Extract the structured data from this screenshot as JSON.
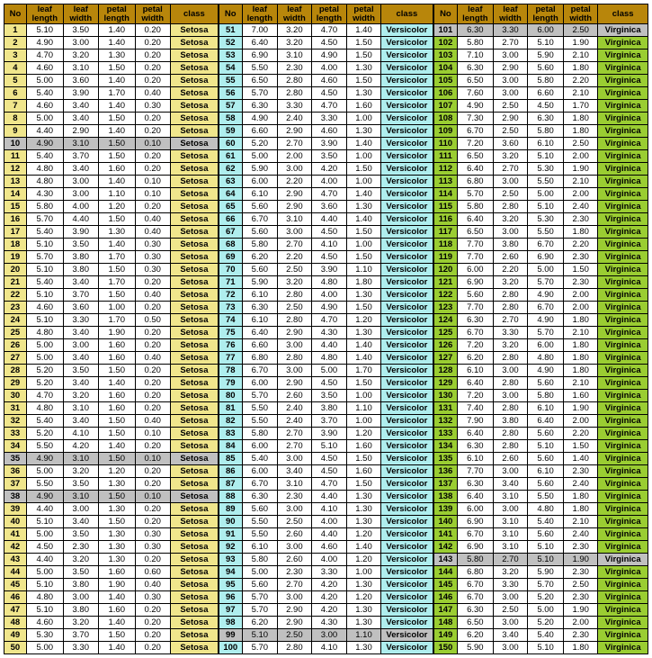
{
  "columns": [
    "No",
    "leaf\nlength",
    "leaf\nwidth",
    "petal\nlength",
    "petal\nwidth",
    "class"
  ],
  "header_bg": "#b8860b",
  "class_styles": {
    "Setosa": {
      "no_bg": "#f0e68c",
      "cls_bg": "#f0e68c"
    },
    "Versicolor": {
      "no_bg": "#afeeee",
      "cls_bg": "#afeeee"
    },
    "Virginica": {
      "no_bg": "#9acd32",
      "cls_bg": "#9acd32"
    }
  },
  "highlight_bg": "#c0c0c0",
  "blocks": [
    {
      "class": "Setosa",
      "start": 1,
      "highlight_rows": [
        10,
        35,
        38
      ],
      "rows": [
        [
          5.1,
          3.5,
          1.4,
          0.2
        ],
        [
          4.9,
          3.0,
          1.4,
          0.2
        ],
        [
          4.7,
          3.2,
          1.3,
          0.2
        ],
        [
          4.6,
          3.1,
          1.5,
          0.2
        ],
        [
          5.0,
          3.6,
          1.4,
          0.2
        ],
        [
          5.4,
          3.9,
          1.7,
          0.4
        ],
        [
          4.6,
          3.4,
          1.4,
          0.3
        ],
        [
          5.0,
          3.4,
          1.5,
          0.2
        ],
        [
          4.4,
          2.9,
          1.4,
          0.2
        ],
        [
          4.9,
          3.1,
          1.5,
          0.1
        ],
        [
          5.4,
          3.7,
          1.5,
          0.2
        ],
        [
          4.8,
          3.4,
          1.6,
          0.2
        ],
        [
          4.8,
          3.0,
          1.4,
          0.1
        ],
        [
          4.3,
          3.0,
          1.1,
          0.1
        ],
        [
          5.8,
          4.0,
          1.2,
          0.2
        ],
        [
          5.7,
          4.4,
          1.5,
          0.4
        ],
        [
          5.4,
          3.9,
          1.3,
          0.4
        ],
        [
          5.1,
          3.5,
          1.4,
          0.3
        ],
        [
          5.7,
          3.8,
          1.7,
          0.3
        ],
        [
          5.1,
          3.8,
          1.5,
          0.3
        ],
        [
          5.4,
          3.4,
          1.7,
          0.2
        ],
        [
          5.1,
          3.7,
          1.5,
          0.4
        ],
        [
          4.6,
          3.6,
          1.0,
          0.2
        ],
        [
          5.1,
          3.3,
          1.7,
          0.5
        ],
        [
          4.8,
          3.4,
          1.9,
          0.2
        ],
        [
          5.0,
          3.0,
          1.6,
          0.2
        ],
        [
          5.0,
          3.4,
          1.6,
          0.4
        ],
        [
          5.2,
          3.5,
          1.5,
          0.2
        ],
        [
          5.2,
          3.4,
          1.4,
          0.2
        ],
        [
          4.7,
          3.2,
          1.6,
          0.2
        ],
        [
          4.8,
          3.1,
          1.6,
          0.2
        ],
        [
          5.4,
          3.4,
          1.5,
          0.4
        ],
        [
          5.2,
          4.1,
          1.5,
          0.1
        ],
        [
          5.5,
          4.2,
          1.4,
          0.2
        ],
        [
          4.9,
          3.1,
          1.5,
          0.1
        ],
        [
          5.0,
          3.2,
          1.2,
          0.2
        ],
        [
          5.5,
          3.5,
          1.3,
          0.2
        ],
        [
          4.9,
          3.1,
          1.5,
          0.1
        ],
        [
          4.4,
          3.0,
          1.3,
          0.2
        ],
        [
          5.1,
          3.4,
          1.5,
          0.2
        ],
        [
          5.0,
          3.5,
          1.3,
          0.3
        ],
        [
          4.5,
          2.3,
          1.3,
          0.3
        ],
        [
          4.4,
          3.2,
          1.3,
          0.2
        ],
        [
          5.0,
          3.5,
          1.6,
          0.6
        ],
        [
          5.1,
          3.8,
          1.9,
          0.4
        ],
        [
          4.8,
          3.0,
          1.4,
          0.3
        ],
        [
          5.1,
          3.8,
          1.6,
          0.2
        ],
        [
          4.6,
          3.2,
          1.4,
          0.2
        ],
        [
          5.3,
          3.7,
          1.5,
          0.2
        ],
        [
          5.0,
          3.3,
          1.4,
          0.2
        ]
      ]
    },
    {
      "class": "Versicolor",
      "start": 51,
      "highlight_rows": [
        99
      ],
      "rows": [
        [
          7.0,
          3.2,
          4.7,
          1.4
        ],
        [
          6.4,
          3.2,
          4.5,
          1.5
        ],
        [
          6.9,
          3.1,
          4.9,
          1.5
        ],
        [
          5.5,
          2.3,
          4.0,
          1.3
        ],
        [
          6.5,
          2.8,
          4.6,
          1.5
        ],
        [
          5.7,
          2.8,
          4.5,
          1.3
        ],
        [
          6.3,
          3.3,
          4.7,
          1.6
        ],
        [
          4.9,
          2.4,
          3.3,
          1.0
        ],
        [
          6.6,
          2.9,
          4.6,
          1.3
        ],
        [
          5.2,
          2.7,
          3.9,
          1.4
        ],
        [
          5.0,
          2.0,
          3.5,
          1.0
        ],
        [
          5.9,
          3.0,
          4.2,
          1.5
        ],
        [
          6.0,
          2.2,
          4.0,
          1.0
        ],
        [
          6.1,
          2.9,
          4.7,
          1.4
        ],
        [
          5.6,
          2.9,
          3.6,
          1.3
        ],
        [
          6.7,
          3.1,
          4.4,
          1.4
        ],
        [
          5.6,
          3.0,
          4.5,
          1.5
        ],
        [
          5.8,
          2.7,
          4.1,
          1.0
        ],
        [
          6.2,
          2.2,
          4.5,
          1.5
        ],
        [
          5.6,
          2.5,
          3.9,
          1.1
        ],
        [
          5.9,
          3.2,
          4.8,
          1.8
        ],
        [
          6.1,
          2.8,
          4.0,
          1.3
        ],
        [
          6.3,
          2.5,
          4.9,
          1.5
        ],
        [
          6.1,
          2.8,
          4.7,
          1.2
        ],
        [
          6.4,
          2.9,
          4.3,
          1.3
        ],
        [
          6.6,
          3.0,
          4.4,
          1.4
        ],
        [
          6.8,
          2.8,
          4.8,
          1.4
        ],
        [
          6.7,
          3.0,
          5.0,
          1.7
        ],
        [
          6.0,
          2.9,
          4.5,
          1.5
        ],
        [
          5.7,
          2.6,
          3.5,
          1.0
        ],
        [
          5.5,
          2.4,
          3.8,
          1.1
        ],
        [
          5.5,
          2.4,
          3.7,
          1.0
        ],
        [
          5.8,
          2.7,
          3.9,
          1.2
        ],
        [
          6.0,
          2.7,
          5.1,
          1.6
        ],
        [
          5.4,
          3.0,
          4.5,
          1.5
        ],
        [
          6.0,
          3.4,
          4.5,
          1.6
        ],
        [
          6.7,
          3.1,
          4.7,
          1.5
        ],
        [
          6.3,
          2.3,
          4.4,
          1.3
        ],
        [
          5.6,
          3.0,
          4.1,
          1.3
        ],
        [
          5.5,
          2.5,
          4.0,
          1.3
        ],
        [
          5.5,
          2.6,
          4.4,
          1.2
        ],
        [
          6.1,
          3.0,
          4.6,
          1.4
        ],
        [
          5.8,
          2.6,
          4.0,
          1.2
        ],
        [
          5.0,
          2.3,
          3.3,
          1.0
        ],
        [
          5.6,
          2.7,
          4.2,
          1.3
        ],
        [
          5.7,
          3.0,
          4.2,
          1.2
        ],
        [
          5.7,
          2.9,
          4.2,
          1.3
        ],
        [
          6.2,
          2.9,
          4.3,
          1.3
        ],
        [
          5.1,
          2.5,
          3.0,
          1.1
        ],
        [
          5.7,
          2.8,
          4.1,
          1.3
        ]
      ]
    },
    {
      "class": "Virginica",
      "start": 101,
      "highlight_rows": [
        101,
        143
      ],
      "rows": [
        [
          6.3,
          3.3,
          6.0,
          2.5
        ],
        [
          5.8,
          2.7,
          5.1,
          1.9
        ],
        [
          7.1,
          3.0,
          5.9,
          2.1
        ],
        [
          6.3,
          2.9,
          5.6,
          1.8
        ],
        [
          6.5,
          3.0,
          5.8,
          2.2
        ],
        [
          7.6,
          3.0,
          6.6,
          2.1
        ],
        [
          4.9,
          2.5,
          4.5,
          1.7
        ],
        [
          7.3,
          2.9,
          6.3,
          1.8
        ],
        [
          6.7,
          2.5,
          5.8,
          1.8
        ],
        [
          7.2,
          3.6,
          6.1,
          2.5
        ],
        [
          6.5,
          3.2,
          5.1,
          2.0
        ],
        [
          6.4,
          2.7,
          5.3,
          1.9
        ],
        [
          6.8,
          3.0,
          5.5,
          2.1
        ],
        [
          5.7,
          2.5,
          5.0,
          2.0
        ],
        [
          5.8,
          2.8,
          5.1,
          2.4
        ],
        [
          6.4,
          3.2,
          5.3,
          2.3
        ],
        [
          6.5,
          3.0,
          5.5,
          1.8
        ],
        [
          7.7,
          3.8,
          6.7,
          2.2
        ],
        [
          7.7,
          2.6,
          6.9,
          2.3
        ],
        [
          6.0,
          2.2,
          5.0,
          1.5
        ],
        [
          6.9,
          3.2,
          5.7,
          2.3
        ],
        [
          5.6,
          2.8,
          4.9,
          2.0
        ],
        [
          7.7,
          2.8,
          6.7,
          2.0
        ],
        [
          6.3,
          2.7,
          4.9,
          1.8
        ],
        [
          6.7,
          3.3,
          5.7,
          2.1
        ],
        [
          7.2,
          3.2,
          6.0,
          1.8
        ],
        [
          6.2,
          2.8,
          4.8,
          1.8
        ],
        [
          6.1,
          3.0,
          4.9,
          1.8
        ],
        [
          6.4,
          2.8,
          5.6,
          2.1
        ],
        [
          7.2,
          3.0,
          5.8,
          1.6
        ],
        [
          7.4,
          2.8,
          6.1,
          1.9
        ],
        [
          7.9,
          3.8,
          6.4,
          2.0
        ],
        [
          6.4,
          2.8,
          5.6,
          2.2
        ],
        [
          6.3,
          2.8,
          5.1,
          1.5
        ],
        [
          6.1,
          2.6,
          5.6,
          1.4
        ],
        [
          7.7,
          3.0,
          6.1,
          2.3
        ],
        [
          6.3,
          3.4,
          5.6,
          2.4
        ],
        [
          6.4,
          3.1,
          5.5,
          1.8
        ],
        [
          6.0,
          3.0,
          4.8,
          1.8
        ],
        [
          6.9,
          3.1,
          5.4,
          2.1
        ],
        [
          6.7,
          3.1,
          5.6,
          2.4
        ],
        [
          6.9,
          3.1,
          5.1,
          2.3
        ],
        [
          5.8,
          2.7,
          5.1,
          1.9
        ],
        [
          6.8,
          3.2,
          5.9,
          2.3
        ],
        [
          6.7,
          3.3,
          5.7,
          2.5
        ],
        [
          6.7,
          3.0,
          5.2,
          2.3
        ],
        [
          6.3,
          2.5,
          5.0,
          1.9
        ],
        [
          6.5,
          3.0,
          5.2,
          2.0
        ],
        [
          6.2,
          3.4,
          5.4,
          2.3
        ],
        [
          5.9,
          3.0,
          5.1,
          1.8
        ]
      ]
    }
  ]
}
